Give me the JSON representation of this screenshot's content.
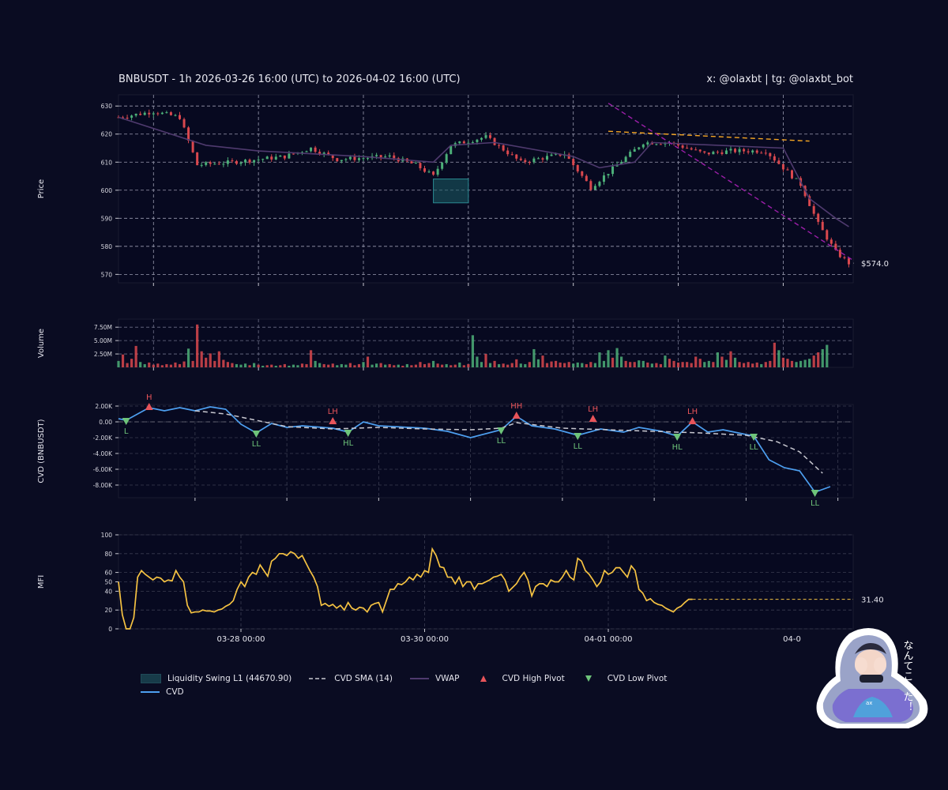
{
  "header": {
    "title": "BNBUSDT - 1h 2026-03-26 16:00 (UTC) to 2026-04-02 16:00 (UTC)",
    "credit": "x: @olaxbt | tg: @olaxbt_bot"
  },
  "colors": {
    "background": "#0a0c22",
    "up": "#4caf78",
    "down": "#d9484e",
    "cvd": "#4d9ff0",
    "cvd_sma": "#c8c8d0",
    "vwap": "#4f3a6e",
    "mfi": "#f5c242",
    "trendline_resistance": "#f5a623",
    "trendline_support": "#9b1fa8",
    "liquidity_zone": "#1b5e66",
    "high_pivot": "#e8545a",
    "low_pivot": "#6ec47a"
  },
  "x_tick_labels": [
    "03-28 00:00",
    "03-30 00:00",
    "04-01 00:00",
    "04-0"
  ],
  "legend": {
    "liquidity": "Liquidity Swing L1 (44670.90)",
    "cvd_sma": "CVD SMA (14)",
    "vwap": "VWAP",
    "high_pivot": "CVD High Pivot",
    "low_pivot": "CVD Low Pivot",
    "cvd": "CVD"
  },
  "mascot": {
    "caption": "なんてこった！"
  },
  "chart_data": [
    {
      "type": "candlestick",
      "panel": "price",
      "ylabel": "Price",
      "ylim": [
        567,
        634
      ],
      "yticks": [
        570,
        580,
        590,
        600,
        610,
        620,
        630
      ],
      "x_range": [
        "2026-03-26 16:00",
        "2026-04-02 16:00"
      ],
      "last_price_label": "$574.0",
      "key_closes": [
        [
          "2026-03-26 16:00",
          626
        ],
        [
          "2026-03-27 00:00",
          628
        ],
        [
          "2026-03-27 06:00",
          626
        ],
        [
          "2026-03-27 10:00",
          609
        ],
        [
          "2026-03-27 18:00",
          610
        ],
        [
          "2026-03-28 06:00",
          612
        ],
        [
          "2026-03-28 12:00",
          615
        ],
        [
          "2026-03-28 18:00",
          611
        ],
        [
          "2026-03-29 06:00",
          612
        ],
        [
          "2026-03-29 12:00",
          609
        ],
        [
          "2026-03-29 16:00",
          605
        ],
        [
          "2026-03-29 20:00",
          616
        ],
        [
          "2026-03-30 04:00",
          619
        ],
        [
          "2026-03-30 12:00",
          610
        ],
        [
          "2026-03-30 22:00",
          613
        ],
        [
          "2026-03-31 04:00",
          601
        ],
        [
          "2026-03-31 10:00",
          609
        ],
        [
          "2026-03-31 16:00",
          617
        ],
        [
          "2026-03-31 22:00",
          617
        ],
        [
          "2026-04-01 06:00",
          613
        ],
        [
          "2026-04-01 12:00",
          614
        ],
        [
          "2026-04-01 20:00",
          614
        ],
        [
          "2026-04-02 04:00",
          602
        ],
        [
          "2026-04-02 08:00",
          588
        ],
        [
          "2026-04-02 12:00",
          578
        ],
        [
          "2026-04-02 15:00",
          574
        ]
      ],
      "vwap": [
        [
          "2026-03-26 16:00",
          626
        ],
        [
          "2026-03-27 12:00",
          616
        ],
        [
          "2026-03-28 00:00",
          614
        ],
        [
          "2026-03-29 00:00",
          612
        ],
        [
          "2026-03-29 16:00",
          610
        ],
        [
          "2026-03-29 20:00",
          616
        ],
        [
          "2026-03-30 06:00",
          617
        ],
        [
          "2026-03-31 00:00",
          612
        ],
        [
          "2026-03-31 06:00",
          608
        ],
        [
          "2026-03-31 14:00",
          610
        ],
        [
          "2026-03-31 18:00",
          617
        ],
        [
          "2026-04-02 00:00",
          615
        ],
        [
          "2026-04-02 06:00",
          597
        ],
        [
          "2026-04-02 12:00",
          590
        ],
        [
          "2026-04-02 15:00",
          587
        ]
      ],
      "liquidity_zone": {
        "from": "2026-03-29 16:00",
        "to": "2026-03-30 00:00",
        "low": 595.5,
        "high": 604
      },
      "trendlines": [
        {
          "name": "resistance",
          "points": [
            [
              "2026-03-31 08:00",
              621
            ],
            [
              "2026-04-02 06:00",
              617.5
            ]
          ]
        },
        {
          "name": "support",
          "points": [
            [
              "2026-03-31 08:00",
              631
            ],
            [
              "2026-04-02 16:00",
              575
            ]
          ]
        }
      ]
    },
    {
      "type": "bar",
      "panel": "volume",
      "ylabel": "Volume",
      "ylim": [
        0,
        9000000
      ],
      "ytick_labels": [
        "2.50M",
        "5.00M",
        "7.50M"
      ],
      "yticks": [
        2500000,
        5000000,
        7500000
      ],
      "values_millions": [
        1.2,
        2.4,
        0.8,
        1.6,
        4.0,
        1.0,
        0.6,
        0.9,
        0.5,
        0.7,
        0.4,
        0.6,
        0.5,
        0.9,
        0.6,
        1.1,
        3.5,
        1.2,
        8.0,
        3.0,
        1.8,
        2.6,
        1.2,
        3.0,
        1.4,
        1.0,
        0.8,
        0.6,
        0.5,
        0.7,
        0.4,
        0.8,
        0.5,
        0.3,
        0.4,
        0.5,
        0.3,
        0.4,
        0.6,
        0.3,
        0.5,
        0.4,
        0.7,
        0.6,
        3.2,
        1.2,
        0.8,
        0.6,
        0.5,
        0.7,
        0.4,
        0.6,
        0.5,
        0.8,
        0.4,
        0.6,
        1.0,
        2.0,
        0.5,
        0.7,
        0.8,
        0.5,
        0.6,
        0.4,
        0.5,
        0.3,
        0.6,
        0.4,
        0.5,
        1.0,
        0.6,
        0.8,
        1.2,
        0.7,
        0.5,
        0.6,
        0.4,
        0.5,
        0.9,
        0.4,
        0.6,
        6.0,
        2.0,
        1.0,
        2.5,
        0.8,
        1.2,
        0.6,
        0.7,
        0.5,
        0.8,
        1.5,
        0.7,
        0.6,
        1.0,
        3.4,
        1.5,
        2.2,
        0.8,
        1.1,
        1.2,
        0.9,
        0.8,
        1.0,
        0.7,
        0.9,
        0.8,
        0.6,
        1.0,
        0.8,
        2.8,
        1.2,
        3.2,
        1.8,
        3.6,
        2.0,
        1.2,
        1.0,
        1.0,
        1.3,
        1.2,
        0.9,
        0.7,
        0.8,
        0.6,
        2.2,
        1.6,
        1.2,
        0.9,
        1.0,
        1.0,
        0.8,
        2.0,
        1.6,
        1.0,
        1.2,
        1.0,
        2.8,
        2.0,
        1.4,
        3.0,
        1.8,
        1.0,
        0.8,
        1.0,
        0.7,
        0.9,
        0.6,
        1.0,
        1.2,
        4.6,
        3.2,
        1.8,
        1.6,
        1.2,
        1.0,
        1.2,
        1.4,
        1.6,
        2.2,
        2.8,
        3.4,
        4.2
      ]
    },
    {
      "type": "line",
      "panel": "cvd",
      "ylabel": "CVD (BNBUSDT)",
      "ylim": [
        -9600,
        2200
      ],
      "yticks": [
        2000,
        0,
        -2000,
        -4000,
        -6000,
        -8000
      ],
      "ytick_labels": [
        "2.00K",
        "0.00",
        "-2.00K",
        "-4.00K",
        "-6.00K",
        "-8.00K"
      ],
      "series": [
        {
          "name": "CVD",
          "points": [
            [
              "2026-03-26 16:00",
              400
            ],
            [
              "2026-03-26 18:00",
              200
            ],
            [
              "2026-03-27 00:00",
              1800
            ],
            [
              "2026-03-27 04:00",
              1400
            ],
            [
              "2026-03-27 08:00",
              1800
            ],
            [
              "2026-03-27 12:00",
              1400
            ],
            [
              "2026-03-27 16:00",
              1900
            ],
            [
              "2026-03-27 20:00",
              1600
            ],
            [
              "2026-03-28 00:00",
              -300
            ],
            [
              "2026-03-28 04:00",
              -1400
            ],
            [
              "2026-03-28 08:00",
              -200
            ],
            [
              "2026-03-28 12:00",
              -700
            ],
            [
              "2026-03-28 16:00",
              -500
            ],
            [
              "2026-03-29 00:00",
              -800
            ],
            [
              "2026-03-29 04:00",
              -1300
            ],
            [
              "2026-03-29 08:00",
              0
            ],
            [
              "2026-03-29 12:00",
              -500
            ],
            [
              "2026-03-29 16:00",
              -600
            ],
            [
              "2026-03-30 00:00",
              -800
            ],
            [
              "2026-03-30 06:00",
              -1200
            ],
            [
              "2026-03-30 12:00",
              -2000
            ],
            [
              "2026-03-30 20:00",
              -1000
            ],
            [
              "2026-03-31 00:00",
              700
            ],
            [
              "2026-03-31 04:00",
              -500
            ],
            [
              "2026-03-31 10:00",
              -900
            ],
            [
              "2026-03-31 16:00",
              -1700
            ],
            [
              "2026-03-31 22:00",
              -900
            ],
            [
              "2026-04-01 04:00",
              -1300
            ],
            [
              "2026-04-01 08:00",
              -700
            ],
            [
              "2026-04-01 14:00",
              -1200
            ],
            [
              "2026-04-01 18:00",
              -1800
            ],
            [
              "2026-04-01 22:00",
              0
            ],
            [
              "2026-04-02 02:00",
              -1300
            ],
            [
              "2026-04-02 06:00",
              -1000
            ],
            [
              "2026-04-02 10:00",
              -1400
            ],
            [
              "2026-04-02 14:00",
              -1800
            ],
            [
              "2026-04-02 18:00",
              -4800
            ],
            [
              "2026-04-02 22:00",
              -5800
            ],
            [
              "2026-04-03 02:00",
              -6200
            ],
            [
              "2026-04-03 06:00",
              -8900
            ],
            [
              "2026-04-03 10:00",
              -8200
            ]
          ]
        },
        {
          "name": "CVD SMA (14)",
          "points": [
            [
              "2026-03-27 12:00",
              1400
            ],
            [
              "2026-03-27 20:00",
              1000
            ],
            [
              "2026-03-28 12:00",
              -600
            ],
            [
              "2026-03-29 00:00",
              -900
            ],
            [
              "2026-03-29 12:00",
              -700
            ],
            [
              "2026-03-30 00:00",
              -900
            ],
            [
              "2026-03-30 12:00",
              -1000
            ],
            [
              "2026-03-30 20:00",
              -800
            ],
            [
              "2026-03-31 00:00",
              -100
            ],
            [
              "2026-03-31 12:00",
              -800
            ],
            [
              "2026-04-01 00:00",
              -1000
            ],
            [
              "2026-04-01 12:00",
              -1200
            ],
            [
              "2026-04-02 00:00",
              -1400
            ],
            [
              "2026-04-02 12:00",
              -1700
            ],
            [
              "2026-04-02 20:00",
              -2500
            ],
            [
              "2026-04-03 02:00",
              -3800
            ],
            [
              "2026-04-03 08:00",
              -6500
            ]
          ]
        }
      ],
      "pivots": [
        {
          "label": "L",
          "kind": "low",
          "time": "2026-03-26 18:00",
          "value": 200
        },
        {
          "label": "H",
          "kind": "high",
          "time": "2026-03-27 00:00",
          "value": 1800
        },
        {
          "label": "LL",
          "kind": "low",
          "time": "2026-03-28 04:00",
          "value": -1400
        },
        {
          "label": "LH",
          "kind": "high",
          "time": "2026-03-29 00:00",
          "value": 0
        },
        {
          "label": "HL",
          "kind": "low",
          "time": "2026-03-29 04:00",
          "value": -1300
        },
        {
          "label": "LL",
          "kind": "low",
          "time": "2026-03-30 20:00",
          "value": -1000
        },
        {
          "label": "HH",
          "kind": "high",
          "time": "2026-03-31 00:00",
          "value": 700
        },
        {
          "label": "LL",
          "kind": "low",
          "time": "2026-03-31 16:00",
          "value": -1700
        },
        {
          "label": "LH",
          "kind": "high",
          "time": "2026-03-31 20:00",
          "value": 300
        },
        {
          "label": "HL",
          "kind": "low",
          "time": "2026-04-01 18:00",
          "value": -1800
        },
        {
          "label": "LH",
          "kind": "high",
          "time": "2026-04-01 22:00",
          "value": 0
        },
        {
          "label": "LL",
          "kind": "low",
          "time": "2026-04-02 14:00",
          "value": -1800
        },
        {
          "label": "LL",
          "kind": "low",
          "time": "2026-04-03 06:00",
          "value": -8900
        }
      ]
    },
    {
      "type": "line",
      "panel": "mfi",
      "ylabel": "MFI",
      "ylim": [
        0,
        100
      ],
      "yticks": [
        0,
        20,
        40,
        50,
        60,
        80,
        100
      ],
      "last_value_label": "31.40",
      "values": [
        50,
        15,
        0,
        0,
        12,
        55,
        62,
        58,
        55,
        52,
        55,
        54,
        50,
        52,
        51,
        62,
        55,
        50,
        25,
        17,
        18,
        18,
        20,
        19,
        19,
        18,
        20,
        21,
        24,
        26,
        30,
        42,
        50,
        45,
        55,
        60,
        58,
        68,
        62,
        56,
        72,
        75,
        80,
        80,
        78,
        82,
        80,
        75,
        78,
        70,
        62,
        55,
        45,
        25,
        27,
        24,
        26,
        22,
        25,
        20,
        28,
        22,
        20,
        23,
        22,
        18,
        25,
        27,
        28,
        18,
        30,
        42,
        42,
        48,
        47,
        50,
        55,
        52,
        58,
        55,
        62,
        60,
        85,
        78,
        66,
        65,
        55,
        55,
        48,
        55,
        45,
        50,
        50,
        42,
        48,
        48,
        50,
        52,
        55,
        56,
        58,
        52,
        40,
        44,
        48,
        55,
        60,
        52,
        35,
        45,
        48,
        48,
        45,
        52,
        50,
        50,
        55,
        62,
        55,
        52,
        75,
        72,
        62,
        58,
        52,
        45,
        50,
        62,
        58,
        60,
        65,
        65,
        60,
        55,
        67,
        62,
        42,
        38,
        30,
        32,
        28,
        26,
        25,
        22,
        20,
        18,
        22,
        24,
        28,
        31.4,
        31.4
      ]
    }
  ]
}
